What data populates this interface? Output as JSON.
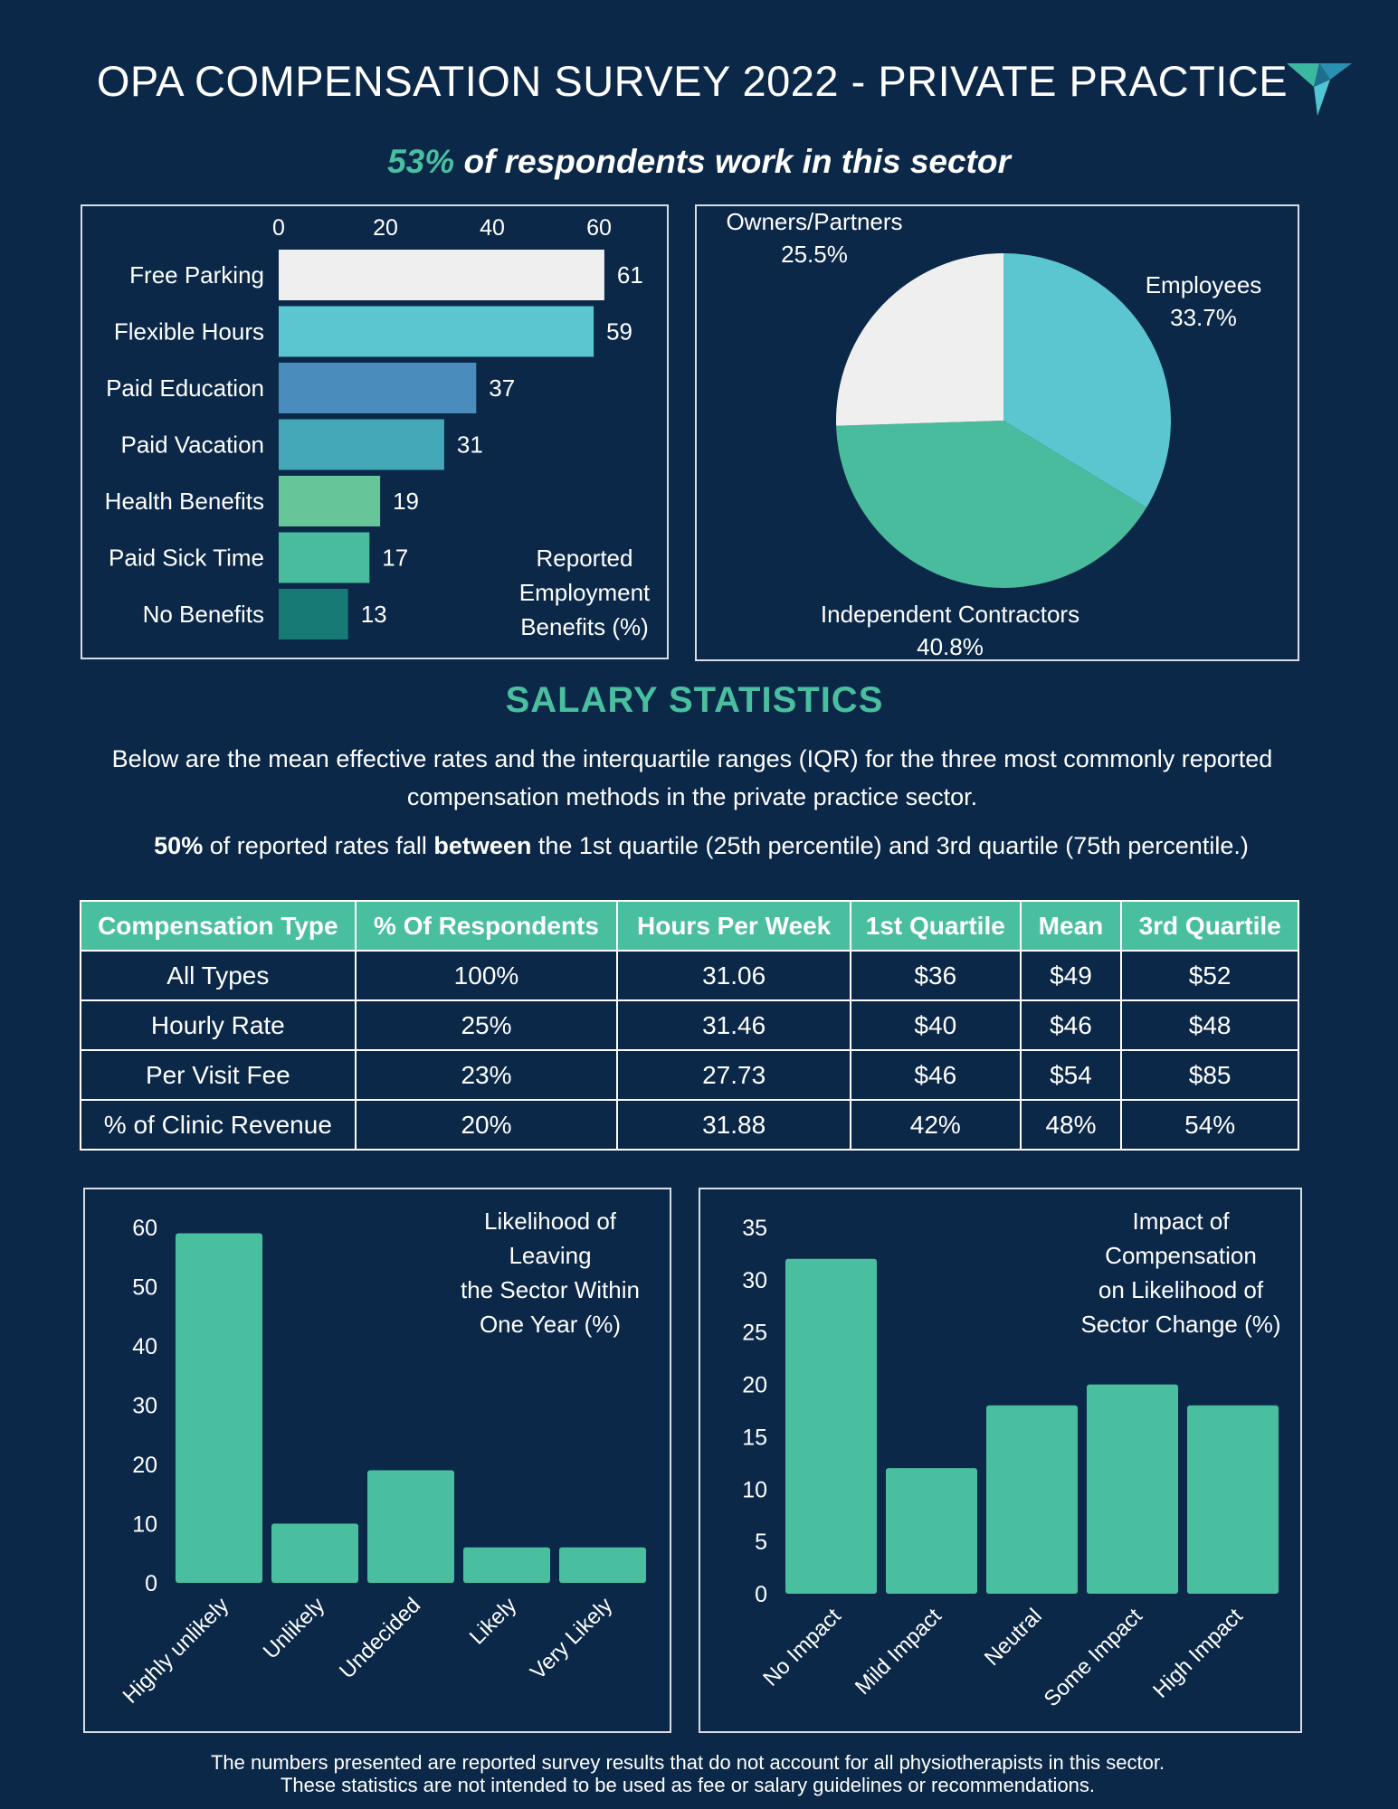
{
  "header": {
    "title": "OPA COMPENSATION SURVEY 2022 - PRIVATE PRACTICE",
    "subtitle_percent": "53%",
    "subtitle_text": " of respondents work in this sector",
    "logo_icon": "triangle-logo-icon"
  },
  "chart_data": [
    {
      "type": "bar",
      "orientation": "horizontal",
      "title": "Reported Employment Benefits (%)",
      "title_lines": [
        "Reported",
        "Employment",
        "Benefits (%)"
      ],
      "categories": [
        "Free Parking",
        "Flexible Hours",
        "Paid Education",
        "Paid Vacation",
        "Health Benefits",
        "Paid Sick Time",
        "No Benefits"
      ],
      "values": [
        61,
        59,
        37,
        31,
        19,
        17,
        13
      ],
      "colors": [
        "#efefef",
        "#5bc6d0",
        "#4a8cbc",
        "#44a8b8",
        "#66c69a",
        "#48bc9c",
        "#177a75"
      ],
      "xticks": [
        0,
        20,
        40,
        60
      ],
      "xlim": [
        0,
        70
      ],
      "grid": false,
      "xlabel": "",
      "ylabel": ""
    },
    {
      "type": "pie",
      "title": "",
      "slices": [
        {
          "label": "Employees",
          "value": 33.7,
          "display": "33.7%",
          "color": "#5bc6d0"
        },
        {
          "label": "Independent Contractors",
          "value": 40.8,
          "display": "40.8%",
          "color": "#48bc9c"
        },
        {
          "label": "Owners/Partners",
          "value": 25.5,
          "display": "25.5%",
          "color": "#efefef"
        }
      ]
    },
    {
      "type": "bar",
      "orientation": "vertical",
      "title": "Likelihood of Leaving the Sector Within One Year (%)",
      "title_lines": [
        "Likelihood of",
        "Leaving",
        "the Sector Within",
        "One Year (%)"
      ],
      "categories": [
        "Highly unlikely",
        "Unlikely",
        "Undecided",
        "Likely",
        "Very Likely"
      ],
      "values": [
        59,
        10,
        19,
        6,
        6
      ],
      "yticks": [
        0,
        10,
        20,
        30,
        40,
        50,
        60
      ],
      "ylim": [
        0,
        60
      ],
      "color": "#4abf9f",
      "grid": false,
      "xlabel": "",
      "ylabel": ""
    },
    {
      "type": "bar",
      "orientation": "vertical",
      "title": "Impact of Compensation on Likelihood of Sector Change (%)",
      "title_lines": [
        "Impact of",
        "Compensation",
        "on Likelihood of",
        "Sector Change (%)"
      ],
      "categories": [
        "No Impact",
        "Mild Impact",
        "Neutral",
        "Some Impact",
        "High Impact"
      ],
      "values": [
        32,
        12,
        18,
        20,
        18
      ],
      "yticks": [
        0,
        5,
        10,
        15,
        20,
        25,
        30,
        35
      ],
      "ylim": [
        0,
        35
      ],
      "color": "#4abf9f",
      "grid": false,
      "xlabel": "",
      "ylabel": ""
    }
  ],
  "salary": {
    "heading": "SALARY STATISTICS",
    "description": "Below are the mean effective rates and the interquartile ranges (IQR) for the three most commonly reported compensation methods in the private practice sector.",
    "note_bold1": "50%",
    "note_text1": " of reported rates fall ",
    "note_bold2": "between",
    "note_text2": " the 1st quartile (25th percentile) and 3rd quartile (75th percentile.)",
    "table": {
      "headers": [
        "Compensation Type",
        "% Of Respondents",
        "Hours Per Week",
        "1st Quartile",
        "Mean",
        "3rd Quartile"
      ],
      "rows": [
        [
          "All Types",
          "100%",
          "31.06",
          "$36",
          "$49",
          "$52"
        ],
        [
          "Hourly Rate",
          "25%",
          "31.46",
          "$40",
          "$46",
          "$48"
        ],
        [
          "Per Visit Fee",
          "23%",
          "27.73",
          "$46",
          "$54",
          "$85"
        ],
        [
          "% of Clinic Revenue",
          "20%",
          "31.88",
          "42%",
          "48%",
          "54%"
        ]
      ]
    }
  },
  "footer": {
    "line1": "The numbers presented are reported survey results that do not account for all physiotherapists in this sector.",
    "line2": "These statistics are not intended to be used as fee or salary guidelines or recommendations."
  },
  "colors": {
    "background": "#0b2848",
    "accent": "#4abf9f",
    "border": "#d8dde3"
  }
}
